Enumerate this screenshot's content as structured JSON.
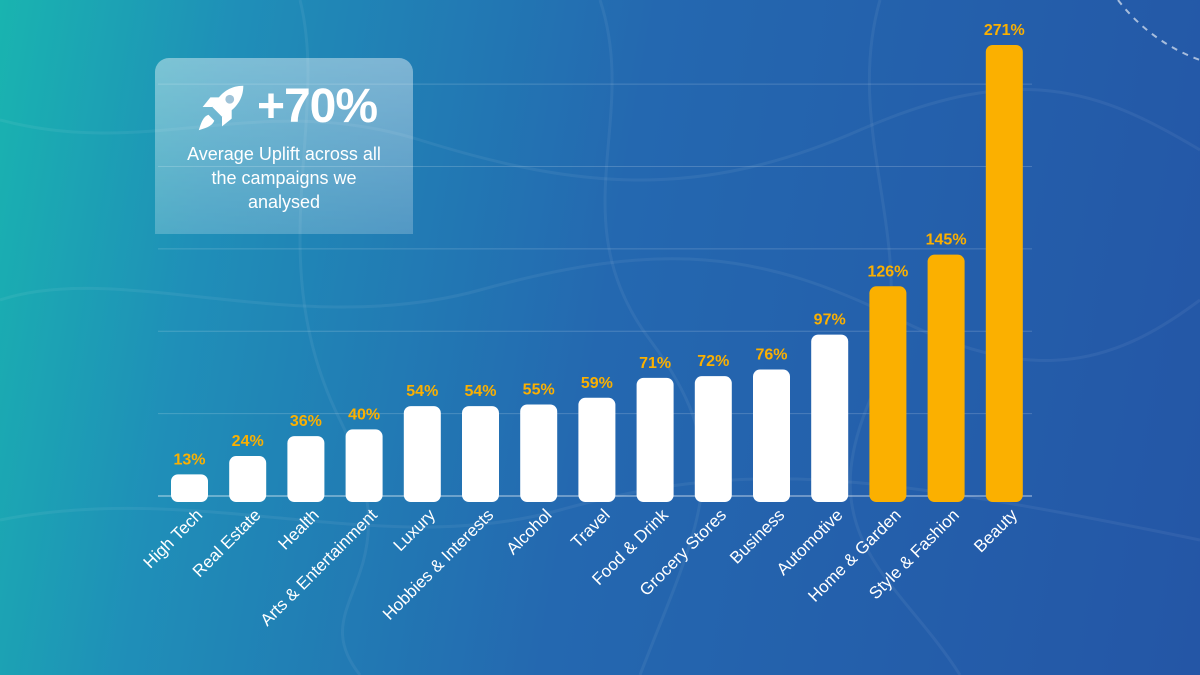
{
  "callout": {
    "value": "+70%",
    "text": "Average Uplift across all the campaigns we analysed",
    "icon": "rocket-icon"
  },
  "colors": {
    "default_bar": "#ffffff",
    "highlight_bar": "#fbb000",
    "value_label": "#fbb000",
    "gridline": "rgba(255,255,255,0.18)"
  },
  "chart_data": {
    "type": "bar",
    "title": "",
    "xlabel": "",
    "ylabel": "",
    "ylim": [
      0,
      280
    ],
    "grid": true,
    "categories": [
      "High Tech",
      "Real Estate",
      "Health",
      "Arts & Entertainment",
      "Luxury",
      "Hobbies & Interests",
      "Alcohol",
      "Travel",
      "Food & Drink",
      "Grocery Stores",
      "Business",
      "Automotive",
      "Home & Garden",
      "Style & Fashion",
      "Beauty"
    ],
    "values": [
      13,
      24,
      36,
      40,
      54,
      54,
      55,
      59,
      71,
      72,
      76,
      97,
      126,
      145,
      271
    ],
    "value_labels": [
      "13%",
      "24%",
      "36%",
      "40%",
      "54%",
      "54%",
      "55%",
      "59%",
      "71%",
      "72%",
      "76%",
      "97%",
      "126%",
      "145%",
      "271%"
    ],
    "highlighted": [
      "Home & Garden",
      "Style & Fashion",
      "Beauty"
    ]
  }
}
